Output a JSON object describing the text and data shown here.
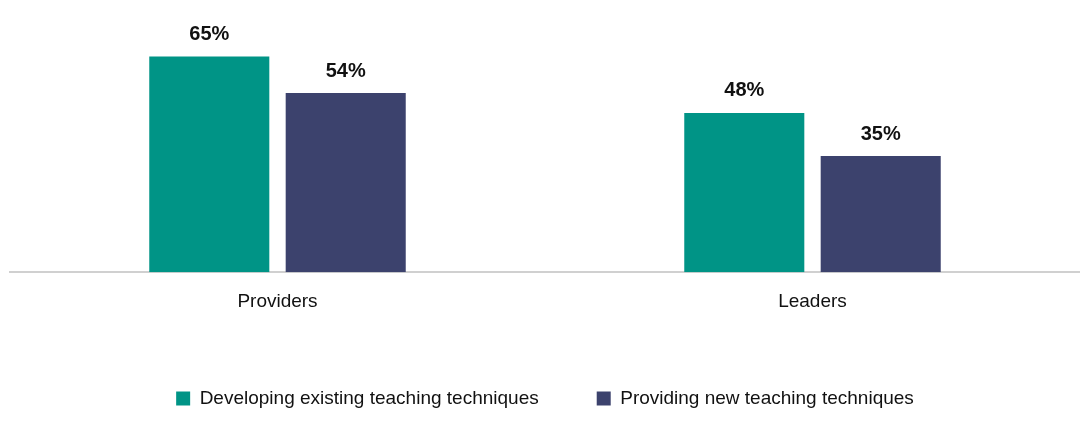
{
  "chart_data": {
    "type": "bar",
    "categories": [
      "Providers",
      "Leaders"
    ],
    "series": [
      {
        "name": "Developing existing teaching techniques",
        "color": "#009486",
        "values": [
          65,
          48
        ],
        "value_labels": [
          "65%",
          "48%"
        ]
      },
      {
        "name": "Providing new teaching techniques",
        "color": "#3c426d",
        "values": [
          54,
          35
        ],
        "value_labels": [
          "54%",
          "35%"
        ]
      }
    ],
    "grid": false,
    "legend": "bottom",
    "tick_labels": "x"
  }
}
